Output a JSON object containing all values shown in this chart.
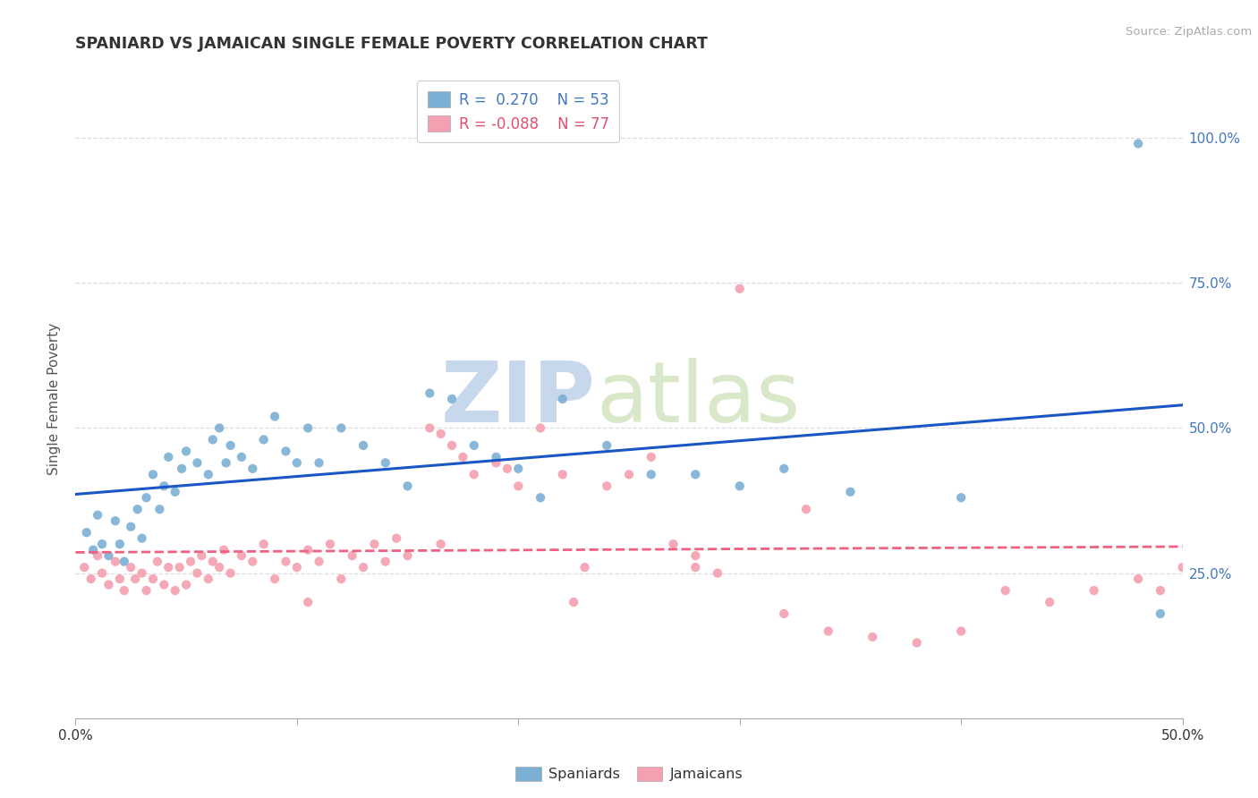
{
  "title": "SPANIARD VS JAMAICAN SINGLE FEMALE POVERTY CORRELATION CHART",
  "source_text": "Source: ZipAtlas.com",
  "ylabel": "Single Female Poverty",
  "xlim": [
    0.0,
    0.5
  ],
  "ylim": [
    0.0,
    1.1
  ],
  "xtick_vals": [
    0.0,
    0.1,
    0.2,
    0.3,
    0.4,
    0.5
  ],
  "xtick_edge_labels": {
    "0": "0.0%",
    "0.5": "50.0%"
  },
  "ytick_vals": [
    0.25,
    0.5,
    0.75,
    1.0
  ],
  "ytick_labels": [
    "25.0%",
    "50.0%",
    "75.0%",
    "100.0%"
  ],
  "spaniard_color": "#7BAFD4",
  "jamaican_color": "#F4A0B0",
  "spaniard_line_color": "#1A56C4",
  "jamaican_line_color": "#F06080",
  "spaniard_R": 0.27,
  "spaniard_N": 53,
  "jamaican_R": -0.088,
  "jamaican_N": 77,
  "legend_label_1": "Spaniards",
  "legend_label_2": "Jamaicans",
  "watermark_zip": "ZIP",
  "watermark_atlas": "atlas",
  "grid_color": "#DDDDDD",
  "spaniards_x": [
    0.005,
    0.008,
    0.01,
    0.012,
    0.015,
    0.018,
    0.02,
    0.022,
    0.025,
    0.028,
    0.03,
    0.032,
    0.035,
    0.038,
    0.04,
    0.042,
    0.045,
    0.048,
    0.05,
    0.055,
    0.06,
    0.062,
    0.065,
    0.068,
    0.07,
    0.075,
    0.08,
    0.085,
    0.09,
    0.095,
    0.1,
    0.105,
    0.11,
    0.12,
    0.13,
    0.14,
    0.15,
    0.16,
    0.17,
    0.18,
    0.19,
    0.2,
    0.21,
    0.22,
    0.24,
    0.26,
    0.28,
    0.3,
    0.32,
    0.35,
    0.4,
    0.48,
    0.49
  ],
  "spaniards_y": [
    0.32,
    0.29,
    0.35,
    0.3,
    0.28,
    0.34,
    0.3,
    0.27,
    0.33,
    0.36,
    0.31,
    0.38,
    0.42,
    0.36,
    0.4,
    0.45,
    0.39,
    0.43,
    0.46,
    0.44,
    0.42,
    0.48,
    0.5,
    0.44,
    0.47,
    0.45,
    0.43,
    0.48,
    0.52,
    0.46,
    0.44,
    0.5,
    0.44,
    0.5,
    0.47,
    0.44,
    0.4,
    0.56,
    0.55,
    0.47,
    0.45,
    0.43,
    0.38,
    0.55,
    0.47,
    0.42,
    0.42,
    0.4,
    0.43,
    0.39,
    0.38,
    0.99,
    0.18
  ],
  "jamaicans_x": [
    0.004,
    0.007,
    0.01,
    0.012,
    0.015,
    0.018,
    0.02,
    0.022,
    0.025,
    0.027,
    0.03,
    0.032,
    0.035,
    0.037,
    0.04,
    0.042,
    0.045,
    0.047,
    0.05,
    0.052,
    0.055,
    0.057,
    0.06,
    0.062,
    0.065,
    0.067,
    0.07,
    0.075,
    0.08,
    0.085,
    0.09,
    0.095,
    0.1,
    0.105,
    0.11,
    0.115,
    0.12,
    0.125,
    0.13,
    0.135,
    0.14,
    0.145,
    0.15,
    0.16,
    0.165,
    0.17,
    0.175,
    0.18,
    0.19,
    0.195,
    0.2,
    0.21,
    0.22,
    0.23,
    0.24,
    0.25,
    0.26,
    0.27,
    0.28,
    0.29,
    0.3,
    0.32,
    0.34,
    0.36,
    0.38,
    0.4,
    0.42,
    0.44,
    0.46,
    0.48,
    0.49,
    0.5,
    0.33,
    0.28,
    0.225,
    0.165,
    0.105
  ],
  "jamaicans_y": [
    0.26,
    0.24,
    0.28,
    0.25,
    0.23,
    0.27,
    0.24,
    0.22,
    0.26,
    0.24,
    0.25,
    0.22,
    0.24,
    0.27,
    0.23,
    0.26,
    0.22,
    0.26,
    0.23,
    0.27,
    0.25,
    0.28,
    0.24,
    0.27,
    0.26,
    0.29,
    0.25,
    0.28,
    0.27,
    0.3,
    0.24,
    0.27,
    0.26,
    0.29,
    0.27,
    0.3,
    0.24,
    0.28,
    0.26,
    0.3,
    0.27,
    0.31,
    0.28,
    0.5,
    0.49,
    0.47,
    0.45,
    0.42,
    0.44,
    0.43,
    0.4,
    0.5,
    0.42,
    0.26,
    0.4,
    0.42,
    0.45,
    0.3,
    0.26,
    0.25,
    0.74,
    0.18,
    0.15,
    0.14,
    0.13,
    0.15,
    0.22,
    0.2,
    0.22,
    0.24,
    0.22,
    0.26,
    0.36,
    0.28,
    0.2,
    0.3,
    0.2
  ]
}
